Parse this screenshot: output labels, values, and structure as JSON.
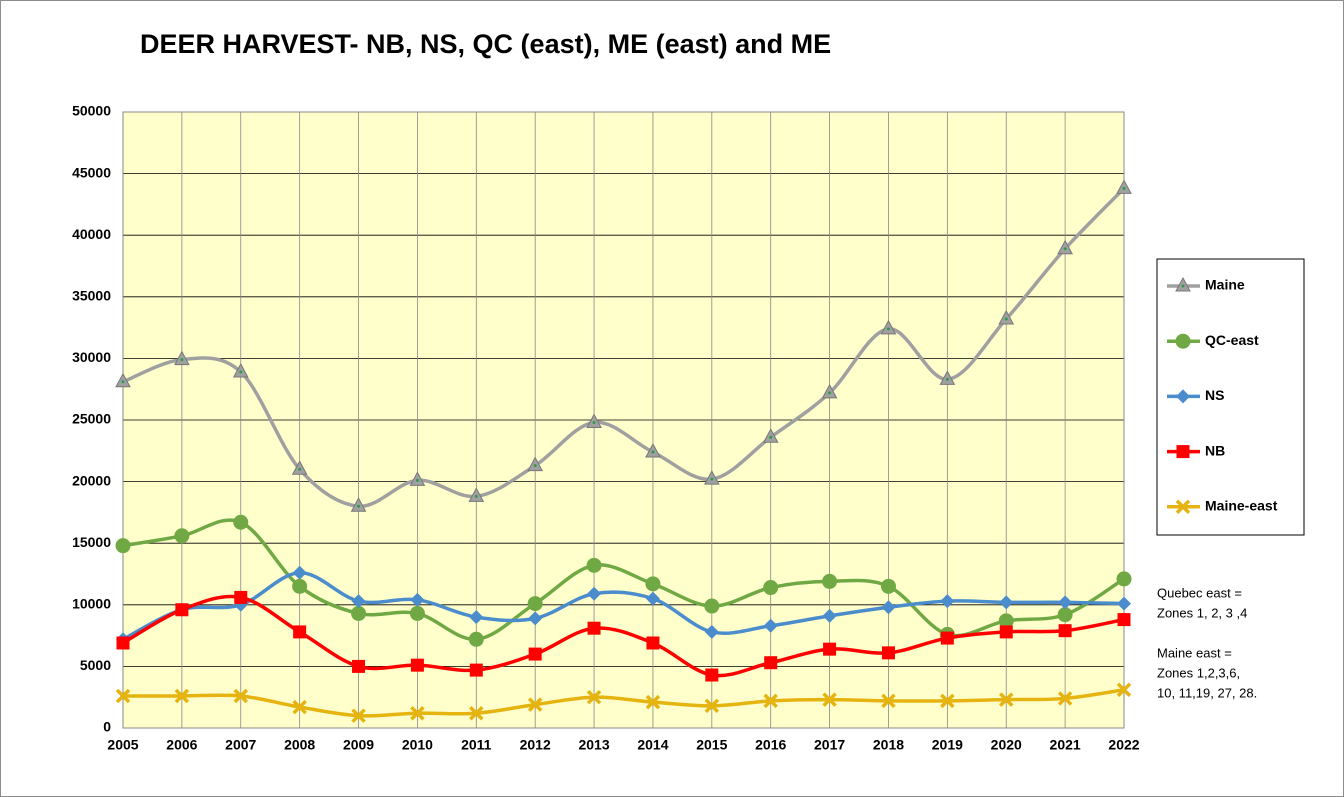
{
  "chart_data": {
    "type": "line",
    "title": "DEER HARVEST- NB, NS, QC (east), ME (east) and ME",
    "categories": [
      "2005",
      "2006",
      "2007",
      "2008",
      "2009",
      "2010",
      "2011",
      "2012",
      "2013",
      "2014",
      "2015",
      "2016",
      "2017",
      "2018",
      "2019",
      "2020",
      "2021",
      "2022"
    ],
    "series": [
      {
        "name": "Maine",
        "color": "#a0a0a0",
        "marker": "triangle",
        "values": [
          28100,
          29900,
          28900,
          21000,
          18000,
          20100,
          18800,
          21300,
          24800,
          22400,
          20200,
          23600,
          27200,
          32400,
          28300,
          33200,
          38900,
          43800
        ]
      },
      {
        "name": "QC-east",
        "color": "#70a844",
        "marker": "circle",
        "values": [
          14800,
          15600,
          16700,
          11500,
          9300,
          9300,
          7200,
          10100,
          13200,
          11700,
          9900,
          11400,
          11900,
          11500,
          7600,
          8700,
          9200,
          12100
        ]
      },
      {
        "name": "NS",
        "color": "#4a8ccc",
        "marker": "diamond",
        "values": [
          7200,
          9600,
          10000,
          12600,
          10300,
          10400,
          9000,
          8900,
          10900,
          10500,
          7800,
          8300,
          9100,
          9800,
          10300,
          10200,
          10200,
          10100
        ]
      },
      {
        "name": "NB",
        "color": "#ff0000",
        "marker": "square",
        "values": [
          6900,
          9600,
          10600,
          7800,
          5000,
          5100,
          4700,
          6000,
          8100,
          6900,
          4300,
          5300,
          6400,
          6100,
          7300,
          7800,
          7900,
          8800
        ]
      },
      {
        "name": "Maine-east",
        "color": "#e6b410",
        "marker": "x",
        "values": [
          2600,
          2600,
          2600,
          1700,
          1000,
          1200,
          1200,
          1900,
          2500,
          2100,
          1800,
          2200,
          2300,
          2200,
          2200,
          2300,
          2400,
          3100
        ]
      }
    ],
    "ylim": [
      0,
      50000
    ],
    "yticks": [
      0,
      5000,
      10000,
      15000,
      20000,
      25000,
      30000,
      35000,
      40000,
      45000,
      50000
    ],
    "grid": true,
    "legend": "right",
    "notes": [
      "Quebec east =",
      "Zones 1, 2, 3 ,4",
      "Maine east =",
      "Zones 1,2,3,6,",
      "10, 11,19, 27, 28."
    ]
  }
}
